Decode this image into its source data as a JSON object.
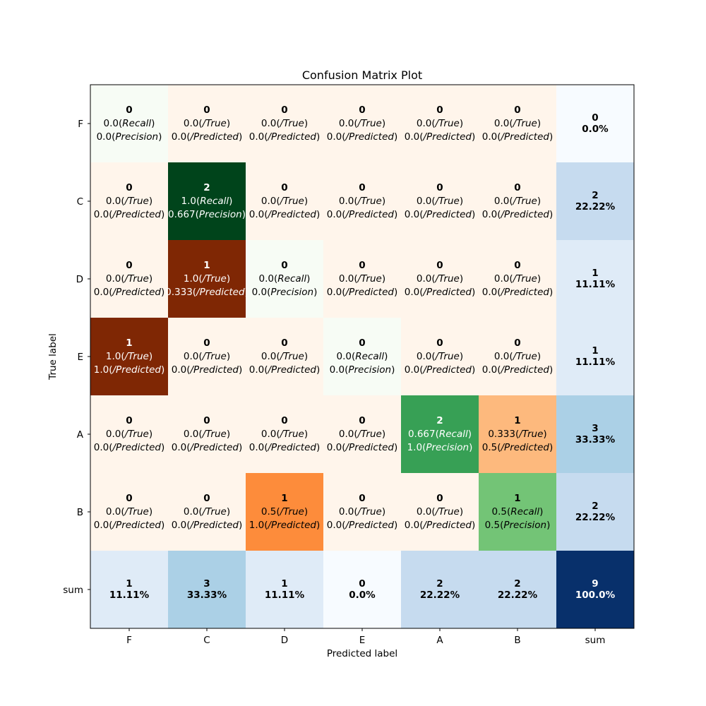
{
  "chart_data": {
    "type": "heatmap",
    "title": "Confusion Matrix Plot",
    "xlabel": "Predicted label",
    "ylabel": "True label",
    "x_categories": [
      "F",
      "C",
      "D",
      "E",
      "A",
      "B",
      "sum"
    ],
    "y_categories": [
      "F",
      "C",
      "D",
      "E",
      "A",
      "B",
      "sum"
    ],
    "grid": false,
    "colormaps": {
      "diagonal": "Greens",
      "off_diagonal": "Oranges",
      "sum": "Blues"
    },
    "cells": [
      [
        {
          "count": "0",
          "lines": [
            [
              "0.0(",
              "Recall",
              ")"
            ],
            [
              "0.0(",
              "Precision",
              ")"
            ]
          ],
          "fill": "#f7fcf5",
          "text_color": "#000000"
        },
        {
          "count": "0",
          "lines": [
            [
              "0.0(",
              "/True",
              ")"
            ],
            [
              "0.0(",
              "/Predicted",
              ")"
            ]
          ],
          "fill": "#fff5eb",
          "text_color": "#000000"
        },
        {
          "count": "0",
          "lines": [
            [
              "0.0(",
              "/True",
              ")"
            ],
            [
              "0.0(",
              "/Predicted",
              ")"
            ]
          ],
          "fill": "#fff5eb",
          "text_color": "#000000"
        },
        {
          "count": "0",
          "lines": [
            [
              "0.0(",
              "/True",
              ")"
            ],
            [
              "0.0(",
              "/Predicted",
              ")"
            ]
          ],
          "fill": "#fff5eb",
          "text_color": "#000000"
        },
        {
          "count": "0",
          "lines": [
            [
              "0.0(",
              "/True",
              ")"
            ],
            [
              "0.0(",
              "/Predicted",
              ")"
            ]
          ],
          "fill": "#fff5eb",
          "text_color": "#000000"
        },
        {
          "count": "0",
          "lines": [
            [
              "0.0(",
              "/True",
              ")"
            ],
            [
              "0.0(",
              "/Predicted",
              ")"
            ]
          ],
          "fill": "#fff5eb",
          "text_color": "#000000"
        },
        {
          "count": "0",
          "percent": "0.0%",
          "fill": "#f7fbff",
          "text_color": "#000000"
        }
      ],
      [
        {
          "count": "0",
          "lines": [
            [
              "0.0(",
              "/True",
              ")"
            ],
            [
              "0.0(",
              "/Predicted",
              ")"
            ]
          ],
          "fill": "#fff5eb",
          "text_color": "#000000"
        },
        {
          "count": "2",
          "lines": [
            [
              "1.0(",
              "Recall",
              ")"
            ],
            [
              "0.667(",
              "Precision",
              ")"
            ]
          ],
          "fill": "#00441b",
          "text_color": "#ffffff"
        },
        {
          "count": "0",
          "lines": [
            [
              "0.0(",
              "/True",
              ")"
            ],
            [
              "0.0(",
              "/Predicted",
              ")"
            ]
          ],
          "fill": "#fff5eb",
          "text_color": "#000000"
        },
        {
          "count": "0",
          "lines": [
            [
              "0.0(",
              "/True",
              ")"
            ],
            [
              "0.0(",
              "/Predicted",
              ")"
            ]
          ],
          "fill": "#fff5eb",
          "text_color": "#000000"
        },
        {
          "count": "0",
          "lines": [
            [
              "0.0(",
              "/True",
              ")"
            ],
            [
              "0.0(",
              "/Predicted",
              ")"
            ]
          ],
          "fill": "#fff5eb",
          "text_color": "#000000"
        },
        {
          "count": "0",
          "lines": [
            [
              "0.0(",
              "/True",
              ")"
            ],
            [
              "0.0(",
              "/Predicted",
              ")"
            ]
          ],
          "fill": "#fff5eb",
          "text_color": "#000000"
        },
        {
          "count": "2",
          "percent": "22.22%",
          "fill": "#c6dbef",
          "text_color": "#000000"
        }
      ],
      [
        {
          "count": "0",
          "lines": [
            [
              "0.0(",
              "/True",
              ")"
            ],
            [
              "0.0(",
              "/Predicted",
              ")"
            ]
          ],
          "fill": "#fff5eb",
          "text_color": "#000000"
        },
        {
          "count": "1",
          "lines": [
            [
              "1.0(",
              "/True",
              ")"
            ],
            [
              "0.333(",
              "/Predicted",
              ")"
            ]
          ],
          "fill": "#7f2704",
          "text_color": "#ffffff"
        },
        {
          "count": "0",
          "lines": [
            [
              "0.0(",
              "Recall",
              ")"
            ],
            [
              "0.0(",
              "Precision",
              ")"
            ]
          ],
          "fill": "#f7fcf5",
          "text_color": "#000000"
        },
        {
          "count": "0",
          "lines": [
            [
              "0.0(",
              "/True",
              ")"
            ],
            [
              "0.0(",
              "/Predicted",
              ")"
            ]
          ],
          "fill": "#fff5eb",
          "text_color": "#000000"
        },
        {
          "count": "0",
          "lines": [
            [
              "0.0(",
              "/True",
              ")"
            ],
            [
              "0.0(",
              "/Predicted",
              ")"
            ]
          ],
          "fill": "#fff5eb",
          "text_color": "#000000"
        },
        {
          "count": "0",
          "lines": [
            [
              "0.0(",
              "/True",
              ")"
            ],
            [
              "0.0(",
              "/Predicted",
              ")"
            ]
          ],
          "fill": "#fff5eb",
          "text_color": "#000000"
        },
        {
          "count": "1",
          "percent": "11.11%",
          "fill": "#dfebf7",
          "text_color": "#000000"
        }
      ],
      [
        {
          "count": "1",
          "lines": [
            [
              "1.0(",
              "/True",
              ")"
            ],
            [
              "1.0(",
              "/Predicted",
              ")"
            ]
          ],
          "fill": "#7f2704",
          "text_color": "#ffffff"
        },
        {
          "count": "0",
          "lines": [
            [
              "0.0(",
              "/True",
              ")"
            ],
            [
              "0.0(",
              "/Predicted",
              ")"
            ]
          ],
          "fill": "#fff5eb",
          "text_color": "#000000"
        },
        {
          "count": "0",
          "lines": [
            [
              "0.0(",
              "/True",
              ")"
            ],
            [
              "0.0(",
              "/Predicted",
              ")"
            ]
          ],
          "fill": "#fff5eb",
          "text_color": "#000000"
        },
        {
          "count": "0",
          "lines": [
            [
              "0.0(",
              "Recall",
              ")"
            ],
            [
              "0.0(",
              "Precision",
              ")"
            ]
          ],
          "fill": "#f7fcf5",
          "text_color": "#000000"
        },
        {
          "count": "0",
          "lines": [
            [
              "0.0(",
              "/True",
              ")"
            ],
            [
              "0.0(",
              "/Predicted",
              ")"
            ]
          ],
          "fill": "#fff5eb",
          "text_color": "#000000"
        },
        {
          "count": "0",
          "lines": [
            [
              "0.0(",
              "/True",
              ")"
            ],
            [
              "0.0(",
              "/Predicted",
              ")"
            ]
          ],
          "fill": "#fff5eb",
          "text_color": "#000000"
        },
        {
          "count": "1",
          "percent": "11.11%",
          "fill": "#dfebf7",
          "text_color": "#000000"
        }
      ],
      [
        {
          "count": "0",
          "lines": [
            [
              "0.0(",
              "/True",
              ")"
            ],
            [
              "0.0(",
              "/Predicted",
              ")"
            ]
          ],
          "fill": "#fff5eb",
          "text_color": "#000000"
        },
        {
          "count": "0",
          "lines": [
            [
              "0.0(",
              "/True",
              ")"
            ],
            [
              "0.0(",
              "/Predicted",
              ")"
            ]
          ],
          "fill": "#fff5eb",
          "text_color": "#000000"
        },
        {
          "count": "0",
          "lines": [
            [
              "0.0(",
              "/True",
              ")"
            ],
            [
              "0.0(",
              "/Predicted",
              ")"
            ]
          ],
          "fill": "#fff5eb",
          "text_color": "#000000"
        },
        {
          "count": "0",
          "lines": [
            [
              "0.0(",
              "/True",
              ")"
            ],
            [
              "0.0(",
              "/Predicted",
              ")"
            ]
          ],
          "fill": "#fff5eb",
          "text_color": "#000000"
        },
        {
          "count": "2",
          "lines": [
            [
              "0.667(",
              "Recall",
              ")"
            ],
            [
              "1.0(",
              "Precision",
              ")"
            ]
          ],
          "fill": "#37a055",
          "text_color": "#ffffff"
        },
        {
          "count": "1",
          "lines": [
            [
              "0.333(",
              "/True",
              ")"
            ],
            [
              "0.5(",
              "/Predicted",
              ")"
            ]
          ],
          "fill": "#fdb97d",
          "text_color": "#000000"
        },
        {
          "count": "3",
          "percent": "33.33%",
          "fill": "#abd0e6",
          "text_color": "#000000"
        }
      ],
      [
        {
          "count": "0",
          "lines": [
            [
              "0.0(",
              "/True",
              ")"
            ],
            [
              "0.0(",
              "/Predicted",
              ")"
            ]
          ],
          "fill": "#fff5eb",
          "text_color": "#000000"
        },
        {
          "count": "0",
          "lines": [
            [
              "0.0(",
              "/True",
              ")"
            ],
            [
              "0.0(",
              "/Predicted",
              ")"
            ]
          ],
          "fill": "#fff5eb",
          "text_color": "#000000"
        },
        {
          "count": "1",
          "lines": [
            [
              "0.5(",
              "/True",
              ")"
            ],
            [
              "1.0(",
              "/Predicted",
              ")"
            ]
          ],
          "fill": "#fd8c3b",
          "text_color": "#000000"
        },
        {
          "count": "0",
          "lines": [
            [
              "0.0(",
              "/True",
              ")"
            ],
            [
              "0.0(",
              "/Predicted",
              ")"
            ]
          ],
          "fill": "#fff5eb",
          "text_color": "#000000"
        },
        {
          "count": "0",
          "lines": [
            [
              "0.0(",
              "/True",
              ")"
            ],
            [
              "0.0(",
              "/Predicted",
              ")"
            ]
          ],
          "fill": "#fff5eb",
          "text_color": "#000000"
        },
        {
          "count": "1",
          "lines": [
            [
              "0.5(",
              "Recall",
              ")"
            ],
            [
              "0.5(",
              "Precision",
              ")"
            ]
          ],
          "fill": "#73c476",
          "text_color": "#000000"
        },
        {
          "count": "2",
          "percent": "22.22%",
          "fill": "#c6dbef",
          "text_color": "#000000"
        }
      ],
      [
        {
          "count": "1",
          "percent": "11.11%",
          "fill": "#dfebf7",
          "text_color": "#000000"
        },
        {
          "count": "3",
          "percent": "33.33%",
          "fill": "#abd0e6",
          "text_color": "#000000"
        },
        {
          "count": "1",
          "percent": "11.11%",
          "fill": "#dfebf7",
          "text_color": "#000000"
        },
        {
          "count": "0",
          "percent": "0.0%",
          "fill": "#f7fbff",
          "text_color": "#000000"
        },
        {
          "count": "2",
          "percent": "22.22%",
          "fill": "#c6dbef",
          "text_color": "#000000"
        },
        {
          "count": "2",
          "percent": "22.22%",
          "fill": "#c6dbef",
          "text_color": "#000000"
        },
        {
          "count": "9",
          "percent": "100.0%",
          "fill": "#08306b",
          "text_color": "#ffffff"
        }
      ]
    ]
  }
}
